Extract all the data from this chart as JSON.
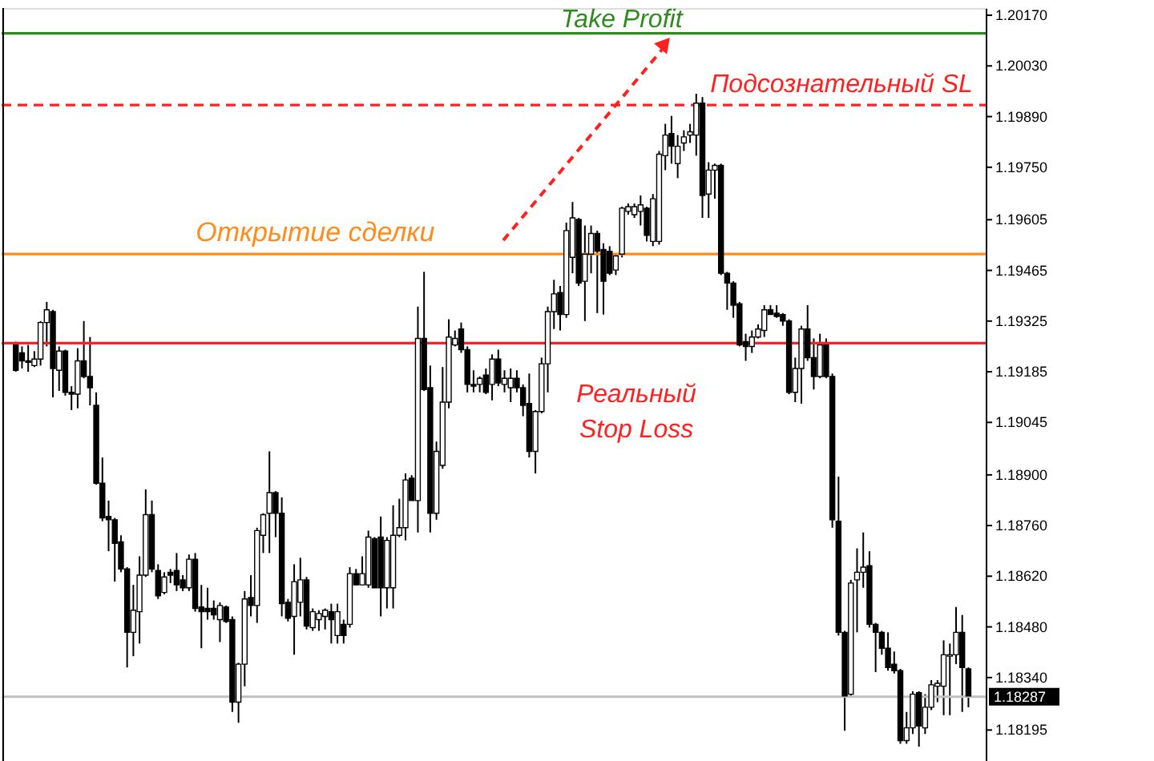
{
  "chart_data": {
    "type": "candlestick",
    "categories": [
      null,
      null,
      null,
      null,
      null,
      null,
      null,
      null,
      null,
      null,
      null,
      null,
      null,
      null,
      null,
      null,
      null,
      null,
      null,
      null,
      null,
      null,
      null,
      null,
      null,
      null,
      null,
      null,
      null,
      null,
      null,
      null,
      null,
      null,
      null,
      null,
      null,
      null,
      null,
      null,
      null,
      null,
      null,
      null,
      null,
      null,
      null,
      null,
      null,
      null,
      null,
      null,
      null,
      null,
      null,
      null,
      null,
      null,
      null,
      null,
      null,
      null,
      null,
      null,
      null,
      null,
      null,
      null,
      null,
      null,
      null,
      null,
      null,
      null,
      null,
      null,
      null,
      null,
      null,
      null,
      null,
      null,
      null,
      null,
      null,
      null,
      null,
      null,
      null,
      null,
      null,
      null,
      null,
      null,
      null,
      null,
      null,
      null,
      null,
      null,
      null,
      null,
      null,
      null,
      null,
      null,
      null,
      null,
      null,
      null,
      null,
      null,
      null,
      null,
      null,
      null,
      null,
      null,
      null,
      null,
      null,
      null,
      null,
      null,
      null,
      null,
      null,
      null,
      null,
      null,
      null,
      null,
      null,
      null,
      null,
      null,
      null,
      null,
      null,
      null,
      null,
      null,
      null,
      null,
      null,
      null,
      null,
      null,
      null,
      null,
      null,
      null,
      null,
      null,
      null
    ],
    "series": [
      {
        "color": "#000000",
        "ohlc": [
          [
            1.19259,
            1.19268,
            1.19185,
            1.19189
          ],
          [
            1.19237,
            1.19255,
            1.19194,
            1.19215
          ],
          [
            1.19215,
            1.19259,
            1.19185,
            1.19211
          ],
          [
            1.19202,
            1.19242,
            1.19198,
            1.1922
          ],
          [
            1.1922,
            1.19325,
            1.19202,
            1.19321
          ],
          [
            1.19321,
            1.19378,
            1.19255,
            1.19356
          ],
          [
            1.19351,
            1.19356,
            1.19114,
            1.19194
          ],
          [
            1.19189,
            1.19255,
            1.19132,
            1.19242
          ],
          [
            1.19242,
            1.19246,
            1.19119,
            1.19128
          ],
          [
            1.19128,
            1.19145,
            1.19079,
            1.19123
          ],
          [
            1.19123,
            1.1925,
            1.19084,
            1.19215
          ],
          [
            1.19215,
            1.19325,
            1.19167,
            1.19172
          ],
          [
            1.19172,
            1.19281,
            1.19092,
            1.19141
          ],
          [
            1.19092,
            1.19128,
            1.18873,
            1.18877
          ],
          [
            1.18877,
            1.18948,
            1.18772,
            1.18781
          ],
          [
            1.18785,
            1.18829,
            1.18689,
            1.18776
          ],
          [
            1.18776,
            1.18781,
            1.18605,
            1.18711
          ],
          [
            1.18715,
            1.18733,
            1.18631,
            1.1864
          ],
          [
            1.1864,
            1.18645,
            1.18368,
            1.18465
          ],
          [
            1.18465,
            1.18596,
            1.18399,
            1.18526
          ],
          [
            1.18522,
            1.18675,
            1.18434,
            1.18623
          ],
          [
            1.18623,
            1.1886,
            1.18618,
            1.1879
          ],
          [
            1.1879,
            1.18829,
            1.18631,
            1.1864
          ],
          [
            1.18636,
            1.18653,
            1.18557,
            1.18566
          ],
          [
            1.18575,
            1.18631,
            1.1857,
            1.18618
          ],
          [
            1.18631,
            1.1864,
            1.18601,
            1.18623
          ],
          [
            1.18636,
            1.18684,
            1.18579,
            1.18596
          ],
          [
            1.1861,
            1.18623,
            1.18579,
            1.18588
          ],
          [
            1.18588,
            1.1868,
            1.18579,
            1.18667
          ],
          [
            1.18667,
            1.18684,
            1.18522,
            1.18531
          ],
          [
            1.18535,
            1.18596,
            1.18421,
            1.18522
          ],
          [
            1.18531,
            1.18588,
            1.185,
            1.18522
          ],
          [
            1.18531,
            1.18553,
            1.185,
            1.18513
          ],
          [
            1.185,
            1.18548,
            1.18438,
            1.18539
          ],
          [
            1.18535,
            1.18539,
            1.18491,
            1.18495
          ],
          [
            1.185,
            1.18509,
            1.18245,
            1.18272
          ],
          [
            1.18272,
            1.18381,
            1.18215,
            1.18377
          ],
          [
            1.18377,
            1.18579,
            1.18316,
            1.18557
          ],
          [
            1.18561,
            1.18623,
            1.18509,
            1.18539
          ],
          [
            1.18539,
            1.18754,
            1.18491,
            1.18746
          ],
          [
            1.18733,
            1.18794,
            1.18684,
            1.1879
          ],
          [
            1.18794,
            1.18965,
            1.18684,
            1.18851
          ],
          [
            1.18851,
            1.18855,
            1.18728,
            1.18794
          ],
          [
            1.18794,
            1.18838,
            1.18509,
            1.18544
          ],
          [
            1.18548,
            1.18557,
            1.18495,
            1.18504
          ],
          [
            1.18509,
            1.18653,
            1.18403,
            1.18605
          ],
          [
            1.18548,
            1.18671,
            1.18509,
            1.1861
          ],
          [
            1.1861,
            1.18618,
            1.18473,
            1.18482
          ],
          [
            1.18478,
            1.18531,
            1.18469,
            1.18522
          ],
          [
            1.185,
            1.18526,
            1.18469,
            1.18517
          ],
          [
            1.18509,
            1.18531,
            1.18473,
            1.18526
          ],
          [
            1.18522,
            1.18544,
            1.18434,
            1.185
          ],
          [
            1.18456,
            1.18544,
            1.18434,
            1.18522
          ],
          [
            1.18487,
            1.185,
            1.18434,
            1.18456
          ],
          [
            1.18487,
            1.18645,
            1.18478,
            1.18627
          ],
          [
            1.18627,
            1.1864,
            1.18596,
            1.18596
          ],
          [
            1.18596,
            1.18675,
            1.18596,
            1.18627
          ],
          [
            1.18596,
            1.18746,
            1.18588,
            1.18728
          ],
          [
            1.18724,
            1.18728,
            1.18588,
            1.18588
          ],
          [
            1.18728,
            1.18785,
            1.18509,
            1.18588
          ],
          [
            1.18588,
            1.18728,
            1.18531,
            1.18719
          ],
          [
            1.18588,
            1.18816,
            1.18531,
            1.18733
          ],
          [
            1.18733,
            1.18834,
            1.18728,
            1.18754
          ],
          [
            1.18754,
            1.18904,
            1.18719,
            1.18886
          ],
          [
            1.18891,
            1.18899,
            1.18829,
            1.18829
          ],
          [
            1.18829,
            1.19365,
            1.18741,
            1.19277
          ],
          [
            1.19277,
            1.19461,
            1.19132,
            1.19136
          ],
          [
            1.19141,
            1.19202,
            1.18741,
            1.18794
          ],
          [
            1.18794,
            1.18992,
            1.18776,
            1.18965
          ],
          [
            1.18926,
            1.19198,
            1.18917,
            1.19101
          ],
          [
            1.19101,
            1.1933,
            1.19084,
            1.19281
          ],
          [
            1.19259,
            1.19299,
            1.19255,
            1.19277
          ],
          [
            1.19303,
            1.19321,
            1.19237,
            1.19246
          ],
          [
            1.19246,
            1.19255,
            1.19128,
            1.1915
          ],
          [
            1.1915,
            1.19189,
            1.19128,
            1.19145
          ],
          [
            1.1915,
            1.19172,
            1.19128,
            1.19167
          ],
          [
            1.19176,
            1.19194,
            1.19123,
            1.19128
          ],
          [
            1.1915,
            1.19233,
            1.19106,
            1.1922
          ],
          [
            1.1922,
            1.19246,
            1.19145,
            1.19154
          ],
          [
            1.1915,
            1.19189,
            1.19128,
            1.19167
          ],
          [
            1.19141,
            1.19194,
            1.19101,
            1.19167
          ],
          [
            1.19167,
            1.19189,
            1.19128,
            1.19141
          ],
          [
            1.19141,
            1.1915,
            1.19062,
            1.19092
          ],
          [
            1.19097,
            1.1918,
            1.18948,
            1.18965
          ],
          [
            1.18965,
            1.19079,
            1.18904,
            1.19075
          ],
          [
            1.19075,
            1.19224,
            1.1907,
            1.19207
          ],
          [
            1.19207,
            1.19365,
            1.19128,
            1.19351
          ],
          [
            1.19351,
            1.19439,
            1.19303,
            1.194
          ],
          [
            1.19404,
            1.19422,
            1.19299,
            1.19343
          ],
          [
            1.19343,
            1.19597,
            1.19334,
            1.19575
          ],
          [
            1.19501,
            1.19654,
            1.19457,
            1.1961
          ],
          [
            1.19606,
            1.1961,
            1.19422,
            1.1943
          ],
          [
            1.19435,
            1.19589,
            1.19325,
            1.1951
          ],
          [
            1.1951,
            1.19589,
            1.19457,
            1.19567
          ],
          [
            1.19567,
            1.19575,
            1.19347,
            1.19518
          ],
          [
            1.19523,
            1.1954,
            1.19343,
            1.19435
          ],
          [
            1.19518,
            1.19532,
            1.19452,
            1.19457
          ],
          [
            1.19466,
            1.1951,
            1.19452,
            1.19505
          ],
          [
            1.1951,
            1.19641,
            1.19501,
            1.19637
          ],
          [
            1.19628,
            1.1965,
            1.19619,
            1.19641
          ],
          [
            1.19619,
            1.1965,
            1.1961,
            1.19641
          ],
          [
            1.19628,
            1.19672,
            1.19589,
            1.19646
          ],
          [
            1.19637,
            1.19641,
            1.19545,
            1.19562
          ],
          [
            1.19545,
            1.19676,
            1.19532,
            1.19663
          ],
          [
            1.19545,
            1.19795,
            1.19536,
            1.19786
          ],
          [
            1.19782,
            1.1987,
            1.19742,
            1.19839
          ],
          [
            1.19843,
            1.19892,
            1.1976,
            1.19808
          ],
          [
            1.1976,
            1.19839,
            1.1972,
            1.19808
          ],
          [
            1.19817,
            1.19852,
            1.19795,
            1.19834
          ],
          [
            1.19839,
            1.1987,
            1.19817,
            1.19848
          ],
          [
            1.19839,
            1.19953,
            1.19782,
            1.19927
          ],
          [
            1.19927,
            1.19944,
            1.1961,
            1.19672
          ],
          [
            1.19676,
            1.19764,
            1.1961,
            1.19742
          ],
          [
            1.19742,
            1.1976,
            1.19663,
            1.19755
          ],
          [
            1.19755,
            1.1976,
            1.19452,
            1.19457
          ],
          [
            1.19457,
            1.19461,
            1.19356,
            1.1943
          ],
          [
            1.1943,
            1.19435,
            1.19334,
            1.19369
          ],
          [
            1.19373,
            1.19378,
            1.19255,
            1.19259
          ],
          [
            1.19268,
            1.1929,
            1.19215,
            1.19255
          ],
          [
            1.19255,
            1.19299,
            1.19237,
            1.19281
          ],
          [
            1.19281,
            1.19316,
            1.19277,
            1.19303
          ],
          [
            1.19299,
            1.19369,
            1.19281,
            1.19356
          ],
          [
            1.19356,
            1.19369,
            1.19343,
            1.19343
          ],
          [
            1.19347,
            1.19369,
            1.19334,
            1.19338
          ],
          [
            1.19343,
            1.19347,
            1.19312,
            1.19325
          ],
          [
            1.19325,
            1.1933,
            1.19123,
            1.19128
          ],
          [
            1.19128,
            1.19224,
            1.19101,
            1.19194
          ],
          [
            1.19194,
            1.19312,
            1.19097,
            1.19303
          ],
          [
            1.19303,
            1.19369,
            1.19215,
            1.19224
          ],
          [
            1.19224,
            1.19277,
            1.19136,
            1.19172
          ],
          [
            1.19172,
            1.1929,
            1.19167,
            1.19259
          ],
          [
            1.19259,
            1.19277,
            1.19167,
            1.19172
          ],
          [
            1.19172,
            1.1918,
            1.18754,
            1.18776
          ],
          [
            1.18772,
            1.18895,
            1.18456,
            1.18465
          ],
          [
            1.18465,
            1.18469,
            1.18193,
            1.18289
          ],
          [
            1.18294,
            1.1861,
            1.18285,
            1.18601
          ],
          [
            1.1861,
            1.18697,
            1.18465,
            1.18631
          ],
          [
            1.18631,
            1.18741,
            1.18588,
            1.18645
          ],
          [
            1.18649,
            1.18689,
            1.18478,
            1.18487
          ],
          [
            1.18487,
            1.18491,
            1.18355,
            1.18465
          ],
          [
            1.18465,
            1.18469,
            1.18403,
            1.18421
          ],
          [
            1.18421,
            1.18465,
            1.18359,
            1.18368
          ],
          [
            1.18377,
            1.18412,
            1.18351,
            1.18359
          ],
          [
            1.18359,
            1.18364,
            1.18157,
            1.18166
          ],
          [
            1.18166,
            1.18245,
            1.18157,
            1.18201
          ],
          [
            1.18201,
            1.18302,
            1.18184,
            1.18294
          ],
          [
            1.18298,
            1.18302,
            1.18149,
            1.18206
          ],
          [
            1.18201,
            1.18294,
            1.18184,
            1.18258
          ],
          [
            1.18258,
            1.18333,
            1.1825,
            1.1832
          ],
          [
            1.18316,
            1.18333,
            1.18272,
            1.18324
          ],
          [
            1.18316,
            1.18443,
            1.18236,
            1.18403
          ],
          [
            1.18399,
            1.18434,
            1.18236,
            1.18403
          ],
          [
            1.18403,
            1.18535,
            1.18377,
            1.18465
          ],
          [
            1.18465,
            1.18513,
            1.18245,
            1.18368
          ],
          [
            1.18364,
            1.18368,
            1.18258,
            1.18289
          ]
        ]
      }
    ],
    "ylim": [
      1.18105,
      1.2019
    ],
    "yticks": [
      {
        "value": 1.2017,
        "label": "1.20170"
      },
      {
        "value": 1.2003,
        "label": "1.20030"
      },
      {
        "value": 1.1989,
        "label": "1.19890"
      },
      {
        "value": 1.1975,
        "label": "1.19750"
      },
      1.19605,
      1.19465,
      1.19325,
      1.19185,
      1.19045,
      {
        "value": 1.189,
        "label": "1.18900"
      },
      {
        "value": 1.1876,
        "label": "1.18760"
      },
      {
        "value": 1.1862,
        "label": "1.18620"
      },
      {
        "value": 1.1848,
        "label": "1.18480"
      },
      {
        "value": 1.1834,
        "label": "1.18340"
      },
      1.18195
    ],
    "tick_labels": "y",
    "grid": false,
    "ref_lines": [
      {
        "axis": "y",
        "value": 1.2012,
        "label": "Take Profit",
        "color": "#2e8b1e",
        "line_style": "solid"
      },
      {
        "axis": "y",
        "value": 1.19922,
        "label": "Подсознательный SL",
        "color": "#ff2020",
        "line_style": "dashed"
      },
      {
        "axis": "y",
        "value": 1.1951,
        "label": "Открытие сделки",
        "color": "#ff8c1a",
        "line_style": "solid"
      },
      {
        "axis": "y",
        "value": 1.19264,
        "label": "Реальный Stop Loss",
        "color": "#ff2020",
        "line_style": "solid"
      },
      {
        "axis": "y",
        "value": 1.18287,
        "label": "1.18287",
        "color": "#c0c0c0",
        "line_style": "solid"
      }
    ]
  }
}
